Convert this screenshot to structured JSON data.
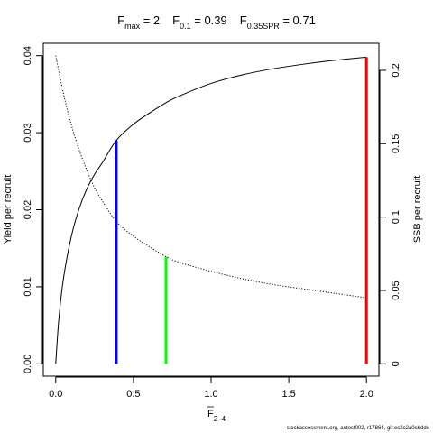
{
  "chart_data": {
    "type": "line",
    "title": {
      "fmax": {
        "sym": "F",
        "sub": "max",
        "rest": " = 2"
      },
      "f01": {
        "sym": "F",
        "sub": "0.1",
        "rest": " = 0.39"
      },
      "f035": {
        "sym": "F",
        "sub": "0.35SPR",
        "rest": " = 0.71"
      }
    },
    "xlabel": {
      "sym": "F",
      "sub": "2–4"
    },
    "ylabel_left": "Yield per recruit",
    "ylabel_right": "SSB per recruit",
    "xlim": [
      -0.08,
      2.08
    ],
    "ylim_left": [
      -0.0016,
      0.0416
    ],
    "ylim_right": [
      -0.0084,
      0.2184
    ],
    "x_ticks": [
      0,
      0.5,
      1,
      1.5,
      2
    ],
    "x_tick_labels": [
      "0.0",
      "0.5",
      "1.0",
      "1.5",
      "2.0"
    ],
    "y_left_ticks": [
      0,
      0.01,
      0.02,
      0.03,
      0.04
    ],
    "y_left_tick_labels": [
      "0.00",
      "0.01",
      "0.02",
      "0.03",
      "0.04"
    ],
    "y_right_ticks": [
      0,
      0.05,
      0.1,
      0.15,
      0.2
    ],
    "y_right_tick_labels": [
      "0",
      "0.05",
      "0.1",
      "0.15",
      "0.2"
    ],
    "series": [
      {
        "axis": "left",
        "style": "solid",
        "x": [
          0,
          0.02,
          0.05,
          0.1,
          0.15,
          0.2,
          0.25,
          0.3,
          0.39,
          0.5,
          0.6,
          0.71,
          0.8,
          1.0,
          1.2,
          1.4,
          1.6,
          1.8,
          2.0
        ],
        "y": [
          0,
          0.0058,
          0.0111,
          0.0165,
          0.0201,
          0.0227,
          0.0246,
          0.0261,
          0.029,
          0.0311,
          0.0325,
          0.0339,
          0.0348,
          0.0364,
          0.0375,
          0.0383,
          0.0389,
          0.0394,
          0.0398
        ]
      },
      {
        "axis": "right",
        "style": "dotted",
        "x": [
          0,
          0.05,
          0.1,
          0.15,
          0.2,
          0.25,
          0.3,
          0.39,
          0.5,
          0.6,
          0.71,
          0.8,
          1.0,
          1.2,
          1.4,
          1.6,
          1.8,
          2.0
        ],
        "y": [
          0.21,
          0.184,
          0.163,
          0.146,
          0.132,
          0.12,
          0.111,
          0.097,
          0.087,
          0.08,
          0.073,
          0.069,
          0.063,
          0.058,
          0.054,
          0.051,
          0.048,
          0.045
        ]
      }
    ],
    "reference_lines": [
      {
        "x": 0.39,
        "y": 0.029,
        "color": "#0000ff"
      },
      {
        "x": 0.71,
        "y": 0.0139,
        "color": "#00ff00"
      },
      {
        "x": 2.0,
        "y": 0.0398,
        "color": "#ff0000"
      }
    ]
  },
  "footer": "stockassessment.org, antest002, r17864, git:ec2c2a0c6dde"
}
